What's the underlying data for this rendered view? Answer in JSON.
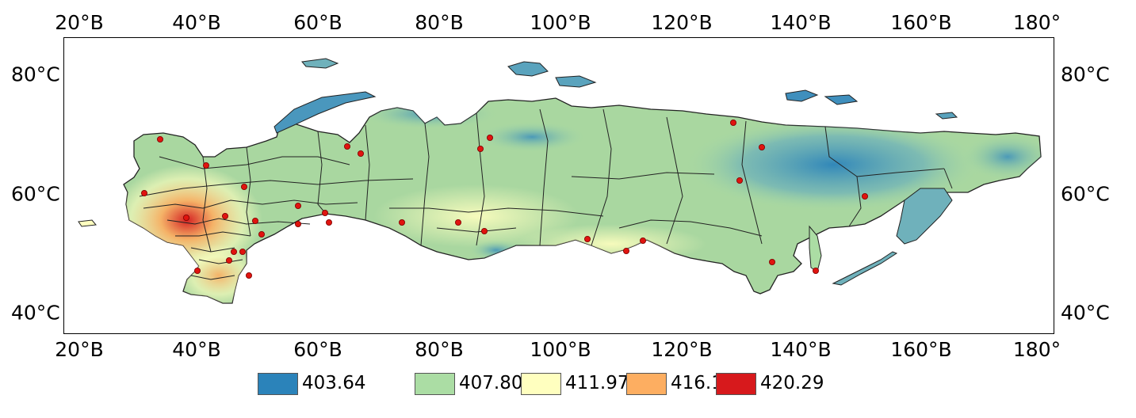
{
  "axes": {
    "lon_ticks_top": [
      "20°В",
      "40°В",
      "60°В",
      "80°В",
      "100°В",
      "120°В",
      "140°В",
      "160°В",
      "180°"
    ],
    "lon_ticks_bottom": [
      "20°В",
      "40°В",
      "60°В",
      "80°В",
      "100°В",
      "120°В",
      "140°В",
      "160°В",
      "180°"
    ],
    "lat_ticks_left": [
      "80°С",
      "60°С",
      "40°С"
    ],
    "lat_ticks_right": [
      "80°С",
      "60°С",
      "40°С"
    ]
  },
  "legend": {
    "entries": [
      {
        "label": "403.64",
        "color": "#2b83ba"
      },
      {
        "label": "407.80",
        "color": "#abdda4"
      },
      {
        "label": "411.97",
        "color": "#ffffbf"
      },
      {
        "label": "416.13",
        "color": "#fdae61"
      },
      {
        "label": "420.29",
        "color": "#d7191c"
      }
    ]
  },
  "map": {
    "region_outline_color": "#222222",
    "station_color": "#e0140f",
    "stations_count_visible": 33
  }
}
